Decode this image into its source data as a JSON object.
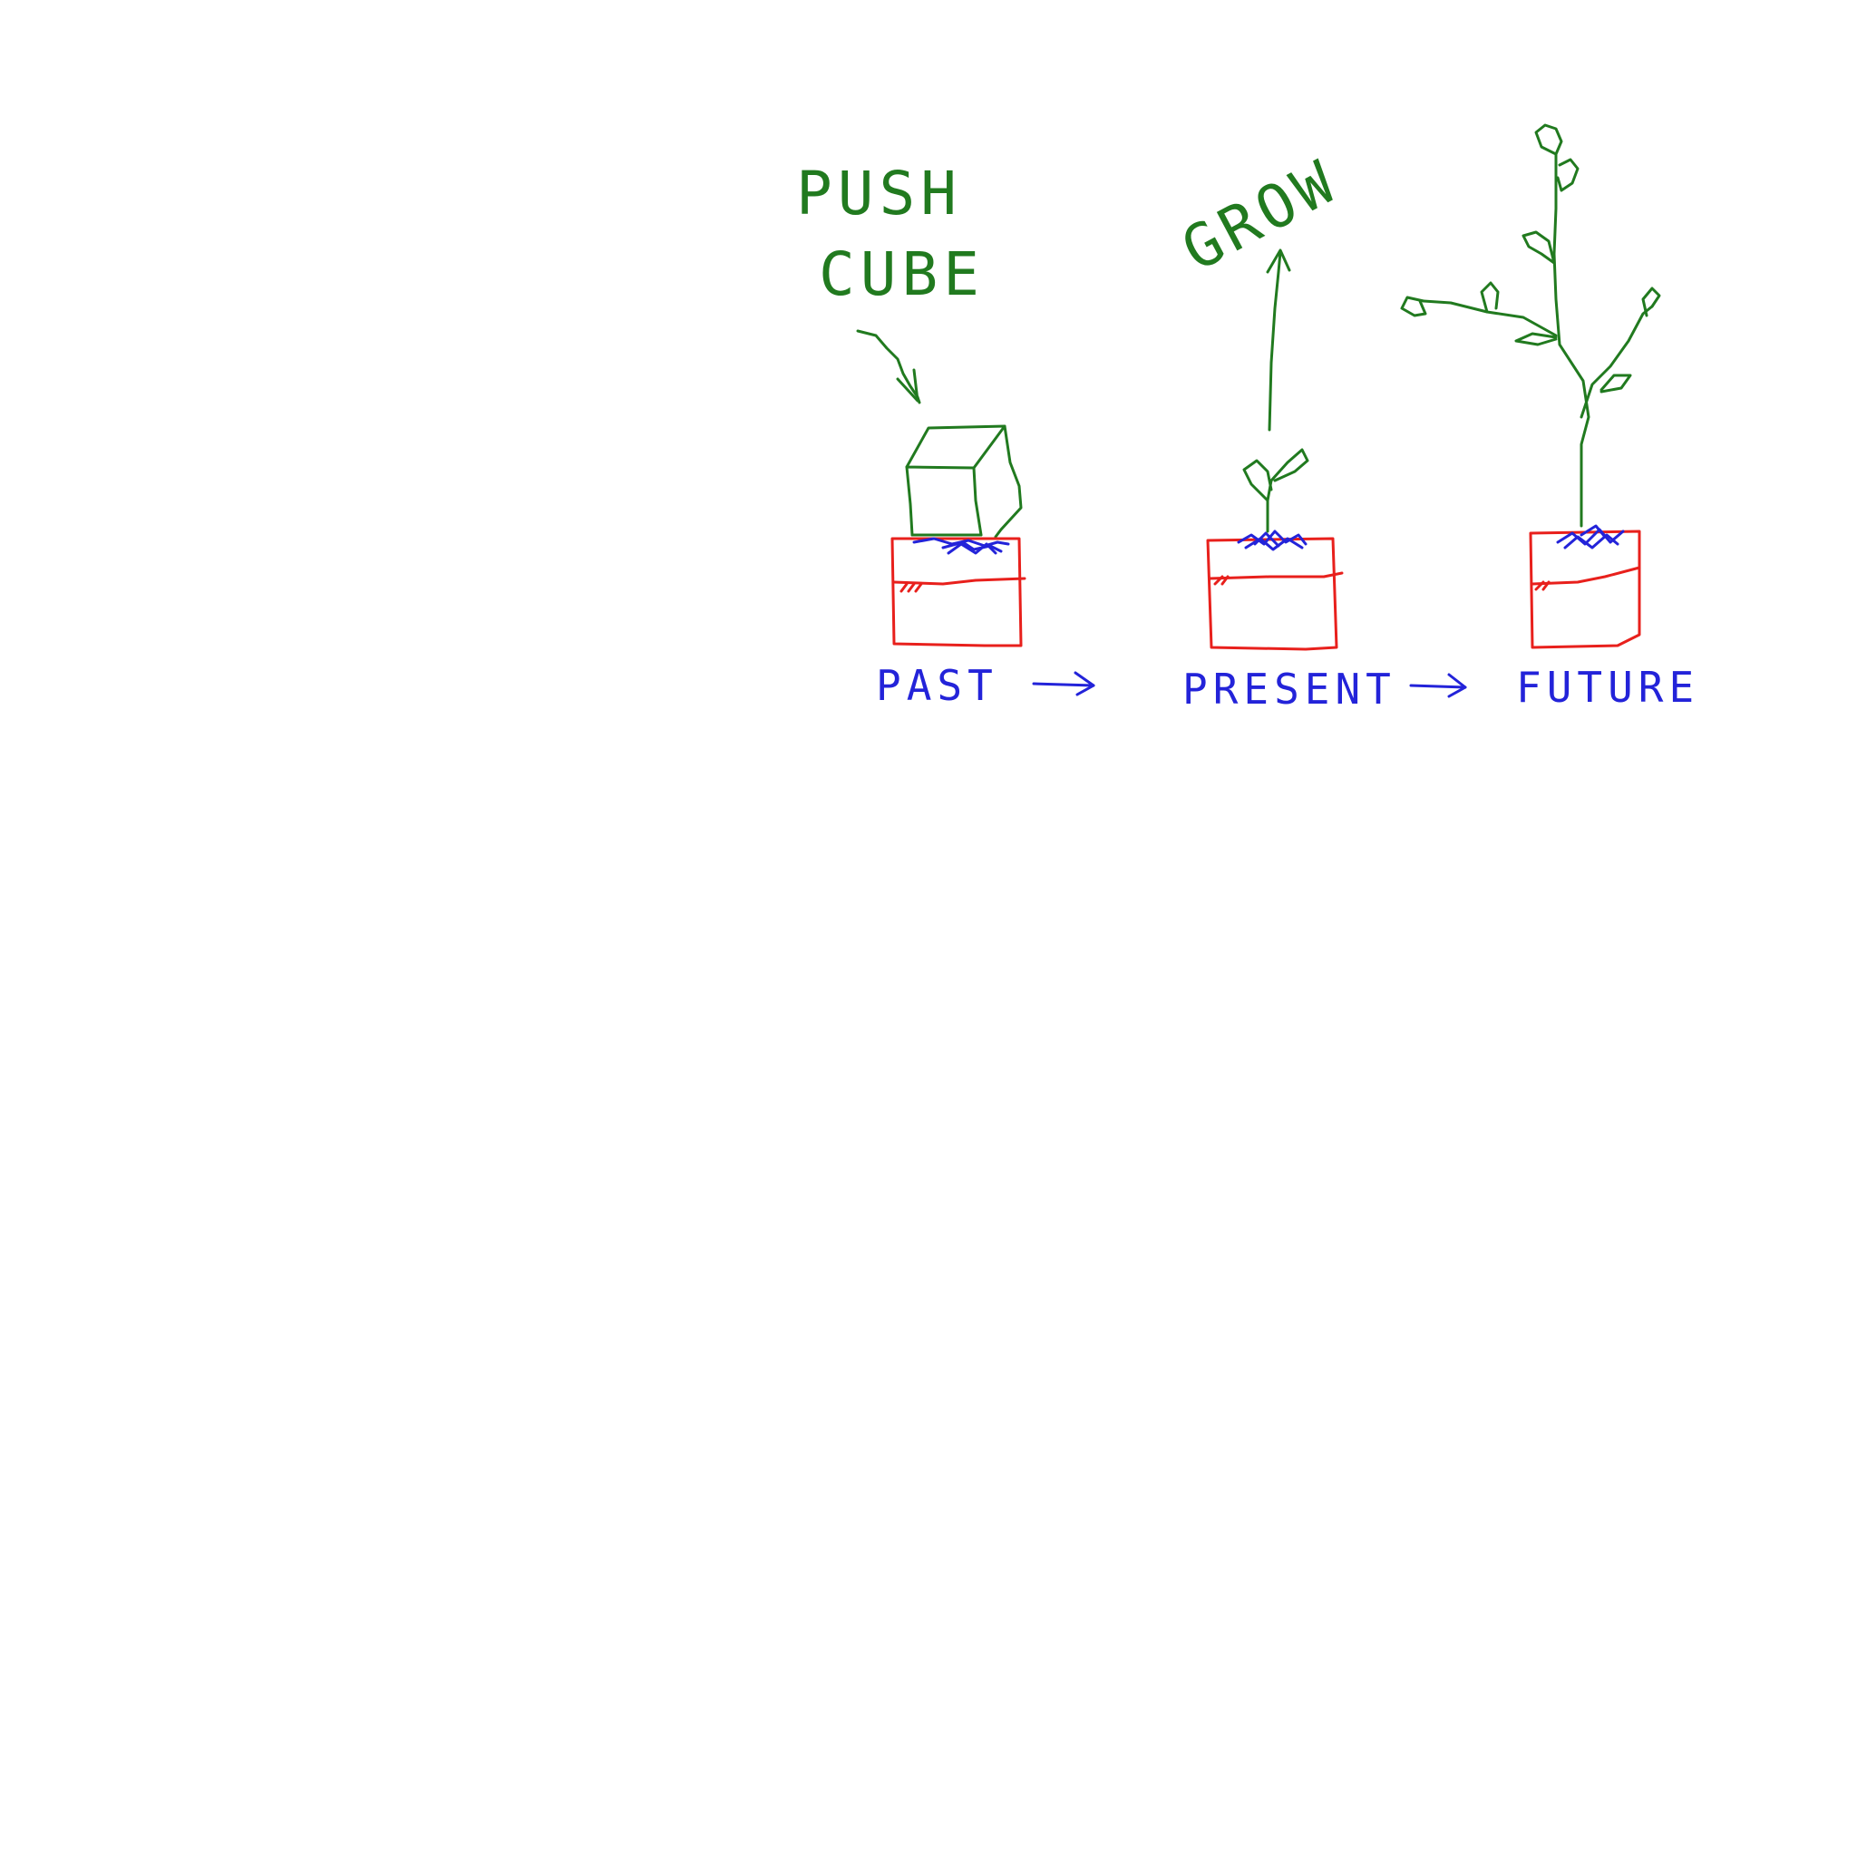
{
  "labels": {
    "push": "PUSH",
    "cube": "CUBE",
    "grow": "GROW",
    "past": "PAST",
    "present": "PRESENT",
    "future": "FUTURE"
  },
  "colors": {
    "green": "#217a1f",
    "red": "#e8201c",
    "blue": "#2323d9",
    "background": "#ffffff"
  }
}
